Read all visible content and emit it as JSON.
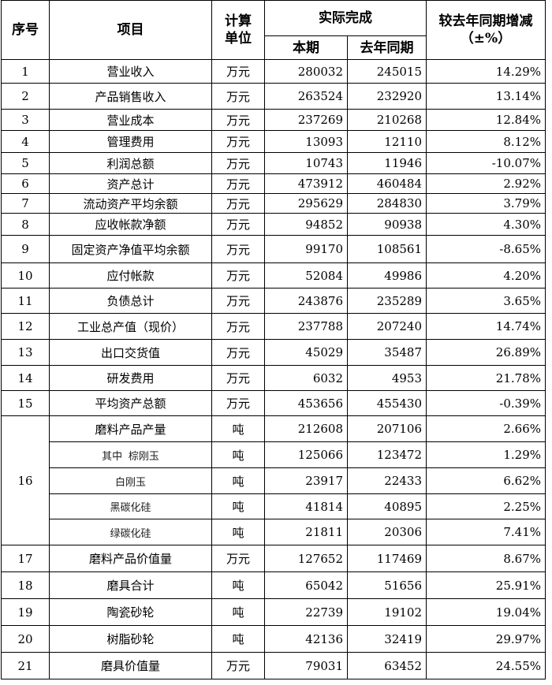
{
  "table": {
    "header": {
      "no": "序号",
      "item": "项目",
      "unit": "计算单位",
      "actual": "实际完成",
      "current": "本期",
      "previous": "去年同期",
      "change": "较去年同期增减（±%）"
    },
    "rows": [
      {
        "no": "1",
        "item": "营业收入",
        "unit": "万元",
        "current": 280032,
        "previous": 245015,
        "change": "14.29%"
      },
      {
        "no": "2",
        "item": "产品销售收入",
        "unit": "万元",
        "current": 263524,
        "previous": 232920,
        "change": "13.14%"
      },
      {
        "no": "3",
        "item": "营业成本",
        "unit": "万元",
        "current": 237269,
        "previous": 210268,
        "change": "12.84%"
      },
      {
        "no": "4",
        "item": "管理费用",
        "unit": "万元",
        "current": 13093,
        "previous": 12110,
        "change": "8.12%"
      },
      {
        "no": "5",
        "item": "利润总额",
        "unit": "万元",
        "current": 10743,
        "previous": 11946,
        "change": "-10.07%"
      },
      {
        "no": "6",
        "item": "资产总计",
        "unit": "万元",
        "current": 473912,
        "previous": 460484,
        "change": "2.92%"
      },
      {
        "no": "7",
        "item": "流动资产平均余额",
        "unit": "万元",
        "current": 295629,
        "previous": 284830,
        "change": "3.79%"
      },
      {
        "no": "8",
        "item": "应收帐款净额",
        "unit": "万元",
        "current": 94852,
        "previous": 90938,
        "change": "4.30%"
      },
      {
        "no": "9",
        "item": "固定资产净值平均余额",
        "unit": "万元",
        "current": 99170,
        "previous": 108561,
        "change": "-8.65%"
      },
      {
        "no": "10",
        "item": "应付帐款",
        "unit": "万元",
        "current": 52084,
        "previous": 49986,
        "change": "4.20%"
      },
      {
        "no": "11",
        "item": "负债总计",
        "unit": "万元",
        "current": 243876,
        "previous": 235289,
        "change": "3.65%"
      },
      {
        "no": "12",
        "item": "工业总产值（现价）",
        "unit": "万元",
        "current": 237788,
        "previous": 207240,
        "change": "14.74%"
      },
      {
        "no": "13",
        "item": "出口交货值",
        "unit": "万元",
        "current": 45029,
        "previous": 35487,
        "change": "26.89%"
      },
      {
        "no": "14",
        "item": "研发费用",
        "unit": "万元",
        "current": 6032,
        "previous": 4953,
        "change": "21.78%"
      },
      {
        "no": "15",
        "item": "平均资产总额",
        "unit": "万元",
        "current": 453656,
        "previous": 455430,
        "change": "-0.39%"
      },
      {
        "no": "16",
        "sub": [
          {
            "item": "磨料产品产量",
            "unit": "吨",
            "current": 212608,
            "previous": 207106,
            "change": "2.66%"
          },
          {
            "item": "其中  棕刚玉",
            "unit": "吨",
            "current": 125066,
            "previous": 123472,
            "change": "1.29%"
          },
          {
            "item": "白刚玉",
            "unit": "吨",
            "current": 23917,
            "previous": 22433,
            "change": "6.62%"
          },
          {
            "item": "黑碳化硅",
            "unit": "吨",
            "current": 41814,
            "previous": 40895,
            "change": "2.25%"
          },
          {
            "item": "绿碳化硅",
            "unit": "吨",
            "current": 21811,
            "previous": 20306,
            "change": "7.41%"
          }
        ]
      },
      {
        "no": "17",
        "item": "磨料产品价值量",
        "unit": "万元",
        "current": 127652,
        "previous": 117469,
        "change": "8.67%"
      },
      {
        "no": "18",
        "item": "磨具合计",
        "unit": "吨",
        "current": 65042,
        "previous": 51656,
        "change": "25.91%"
      },
      {
        "no": "19",
        "item": "陶瓷砂轮",
        "unit": "吨",
        "current": 22739,
        "previous": 19102,
        "change": "19.04%"
      },
      {
        "no": "20",
        "item": "树脂砂轮",
        "unit": "吨",
        "current": 42136,
        "previous": 32419,
        "change": "29.97%"
      },
      {
        "no": "21",
        "item": "磨具价值量",
        "unit": "万元",
        "current": 79031,
        "previous": 63452,
        "change": "24.55%"
      }
    ]
  }
}
